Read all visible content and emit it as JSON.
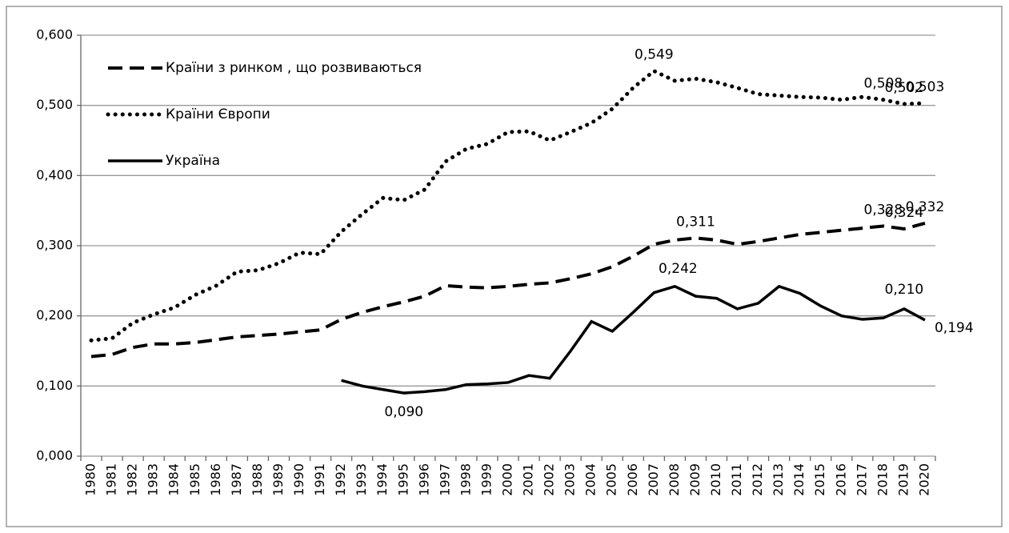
{
  "chart_data": {
    "type": "line",
    "categories": [
      "1980",
      "1981",
      "1982",
      "1983",
      "1984",
      "1985",
      "1986",
      "1987",
      "1988",
      "1989",
      "1990",
      "1991",
      "1992",
      "1993",
      "1994",
      "1995",
      "1996",
      "1997",
      "1998",
      "1999",
      "2000",
      "2001",
      "2002",
      "2003",
      "2004",
      "2005",
      "2006",
      "2007",
      "2008",
      "2009",
      "2010",
      "2011",
      "2012",
      "2013",
      "2014",
      "2015",
      "2016",
      "2017",
      "2018",
      "2019",
      "2020"
    ],
    "series": [
      {
        "name": "Країни з ринком , що розвиваються",
        "color": "#000000",
        "style": "dashed",
        "values": [
          0.142,
          0.145,
          0.155,
          0.16,
          0.16,
          0.162,
          0.166,
          0.17,
          0.172,
          0.174,
          0.177,
          0.18,
          0.195,
          0.205,
          0.213,
          0.22,
          0.228,
          0.243,
          0.241,
          0.24,
          0.242,
          0.245,
          0.247,
          0.253,
          0.26,
          0.27,
          0.285,
          0.302,
          0.308,
          0.311,
          0.308,
          0.302,
          0.306,
          0.311,
          0.316,
          0.319,
          0.322,
          0.325,
          0.328,
          0.324,
          0.332
        ],
        "value_labels": [
          null,
          null,
          null,
          null,
          null,
          null,
          null,
          null,
          null,
          null,
          null,
          null,
          null,
          null,
          null,
          null,
          null,
          null,
          null,
          null,
          null,
          null,
          null,
          null,
          null,
          null,
          null,
          null,
          null,
          "0,311",
          null,
          null,
          null,
          null,
          null,
          null,
          null,
          null,
          "0,328",
          "0,324",
          "0,332"
        ]
      },
      {
        "name": "Країни Європи",
        "color": "#000000",
        "style": "dotted",
        "values": [
          0.165,
          0.168,
          0.19,
          0.202,
          0.212,
          0.23,
          0.243,
          0.263,
          0.265,
          0.275,
          0.29,
          0.288,
          0.32,
          0.345,
          0.368,
          0.365,
          0.38,
          0.42,
          0.438,
          0.445,
          0.462,
          0.463,
          0.45,
          0.462,
          0.475,
          0.495,
          0.525,
          0.549,
          0.535,
          0.538,
          0.533,
          0.525,
          0.516,
          0.514,
          0.512,
          0.511,
          0.508,
          0.512,
          0.508,
          0.502,
          0.503
        ],
        "value_labels": [
          null,
          null,
          null,
          null,
          null,
          null,
          null,
          null,
          null,
          null,
          null,
          null,
          null,
          null,
          null,
          null,
          null,
          null,
          null,
          null,
          null,
          null,
          null,
          null,
          null,
          null,
          null,
          "0,549",
          null,
          null,
          null,
          null,
          null,
          null,
          null,
          null,
          null,
          null,
          "0,508",
          "0,502",
          "0,503"
        ]
      },
      {
        "name": "Україна",
        "color": "#000000",
        "style": "solid",
        "values": [
          null,
          null,
          null,
          null,
          null,
          null,
          null,
          null,
          null,
          null,
          null,
          null,
          0.108,
          0.1,
          0.095,
          0.09,
          0.092,
          0.095,
          0.102,
          0.103,
          0.105,
          0.115,
          0.111,
          0.15,
          0.192,
          0.178,
          0.205,
          0.233,
          0.242,
          0.228,
          0.225,
          0.21,
          0.218,
          0.242,
          0.232,
          0.214,
          0.2,
          0.195,
          0.197,
          0.21,
          0.194
        ],
        "value_labels": [
          null,
          null,
          null,
          null,
          null,
          null,
          null,
          null,
          null,
          null,
          null,
          null,
          null,
          null,
          null,
          "0,090",
          null,
          null,
          null,
          null,
          null,
          null,
          null,
          null,
          null,
          null,
          null,
          null,
          "0,242",
          null,
          null,
          null,
          null,
          null,
          null,
          null,
          null,
          null,
          null,
          "0,210",
          "0,194"
        ]
      }
    ],
    "ylim": [
      0,
      0.6
    ],
    "yticks": [
      {
        "value": 0,
        "label": "0,000"
      },
      {
        "value": 0.1,
        "label": "0,100"
      },
      {
        "value": 0.2,
        "label": "0,200"
      },
      {
        "value": 0.3,
        "label": "0,300"
      },
      {
        "value": 0.4,
        "label": "0,400"
      },
      {
        "value": 0.5,
        "label": "0,500"
      },
      {
        "value": 0.6,
        "label": "0,600"
      }
    ],
    "grid": true,
    "legend": "upper left"
  }
}
